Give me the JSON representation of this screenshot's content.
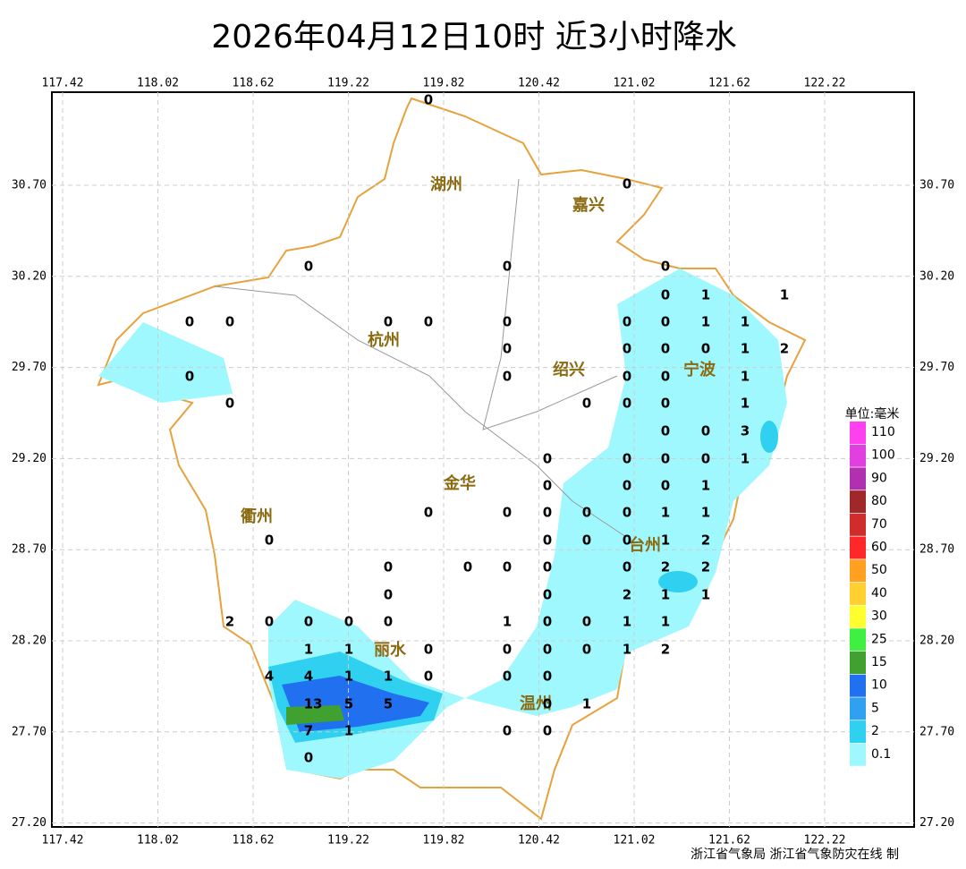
{
  "title": "2026年04月12日10时  近3小时降水",
  "lon_ticks": [
    117.42,
    118.02,
    118.62,
    119.22,
    119.82,
    120.42,
    121.02,
    121.62,
    122.22
  ],
  "lat_ticks": [
    {
      "value": 30.7,
      "label": "30.70"
    },
    {
      "value": 30.2,
      "label": "30.20"
    },
    {
      "value": 29.7,
      "label": "29.70"
    },
    {
      "value": 29.2,
      "label": "29.20"
    },
    {
      "value": 28.7,
      "label": "28.70"
    },
    {
      "value": 28.2,
      "label": "28.20"
    },
    {
      "value": 27.7,
      "label": "27.70"
    },
    {
      "value": 27.2,
      "label": "27.20"
    }
  ],
  "cities": [
    "湖州",
    "嘉兴",
    "杭州",
    "绍兴",
    "宁波",
    "金华",
    "衢州",
    "台州",
    "丽水",
    "温州"
  ],
  "stations": [
    0,
    0,
    0,
    0,
    0,
    0,
    1,
    1,
    0,
    0,
    0,
    0,
    0,
    0,
    0,
    1,
    1,
    0,
    0,
    0,
    0,
    1,
    2,
    0,
    0,
    0,
    0,
    1,
    0,
    0,
    0,
    0,
    1,
    0,
    0,
    3,
    0,
    0,
    0,
    0,
    1,
    0,
    0,
    0,
    1,
    0,
    0,
    0,
    0,
    0,
    1,
    1,
    0,
    0,
    0,
    0,
    1,
    2,
    0,
    0,
    0,
    0,
    0,
    2,
    2,
    0,
    0,
    2,
    1,
    1,
    2,
    0,
    0,
    0,
    0,
    1,
    0,
    0,
    1,
    1,
    1,
    1,
    0,
    0,
    0,
    0,
    1,
    2,
    4,
    4,
    1,
    1,
    0,
    0,
    0,
    13,
    5,
    5,
    0,
    1,
    7,
    1,
    0,
    0,
    0
  ],
  "legend": {
    "title": "单位:毫米",
    "items": [
      {
        "value": 110,
        "color": "#ff40f0"
      },
      {
        "value": 100,
        "color": "#e040e0"
      },
      {
        "value": 90,
        "color": "#b030b0"
      },
      {
        "value": 80,
        "color": "#a02828"
      },
      {
        "value": 70,
        "color": "#d02c2c"
      },
      {
        "value": 60,
        "color": "#ff2828"
      },
      {
        "value": 50,
        "color": "#ffa020"
      },
      {
        "value": 40,
        "color": "#ffd030"
      },
      {
        "value": 30,
        "color": "#ffff30"
      },
      {
        "value": 25,
        "color": "#40f040"
      },
      {
        "value": 15,
        "color": "#40a030"
      },
      {
        "value": 10,
        "color": "#2070f0"
      },
      {
        "value": 5,
        "color": "#30a0f0"
      },
      {
        "value": 2,
        "color": "#30d0f0"
      },
      {
        "value": 0.1,
        "color": "#a0f8ff"
      }
    ]
  },
  "footer": "浙江省气象局 浙江省气象防灾在线 制"
}
